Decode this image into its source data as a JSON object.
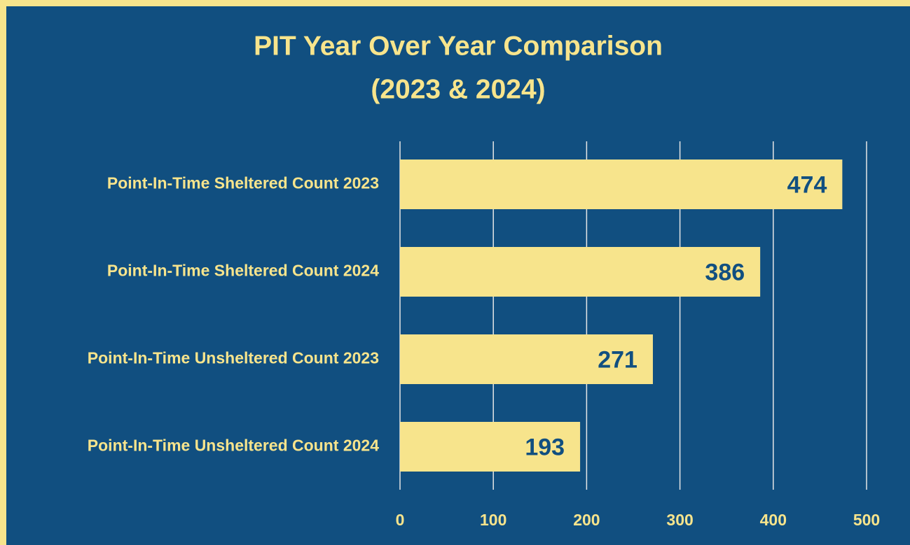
{
  "chart_data": {
    "type": "bar",
    "orientation": "horizontal",
    "title": "PIT Year Over Year Comparison",
    "subtitle": "(2023 & 2024)",
    "categories": [
      "Point-In-Time Sheltered Count 2023",
      "Point-In-Time Sheltered Count 2024",
      "Point-In-Time Unsheltered Count 2023",
      "Point-In-Time Unsheltered Count 2024"
    ],
    "values": [
      474,
      386,
      271,
      193
    ],
    "color": "#f7e48c",
    "xlim": [
      0,
      500
    ],
    "xticks": [
      0,
      100,
      200,
      300,
      400,
      500
    ],
    "grid": true
  }
}
